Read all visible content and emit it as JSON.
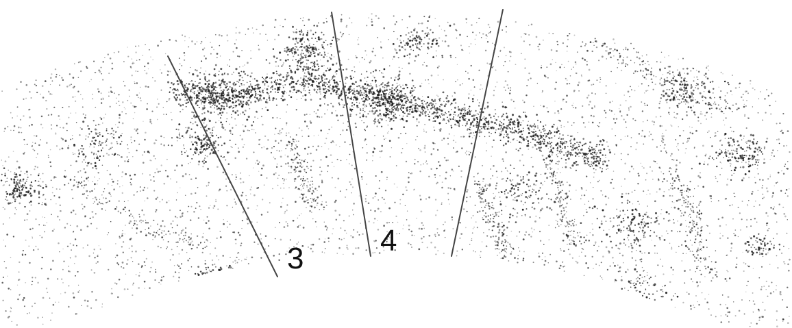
{
  "diagram": {
    "background_color": "#ffffff",
    "point_color": "#1f1f1f",
    "line_color": "#444444",
    "label_color": "#111111",
    "slices": [
      {
        "id": "slice-3",
        "label": "3"
      },
      {
        "id": "slice-4",
        "label": "4"
      }
    ]
  }
}
